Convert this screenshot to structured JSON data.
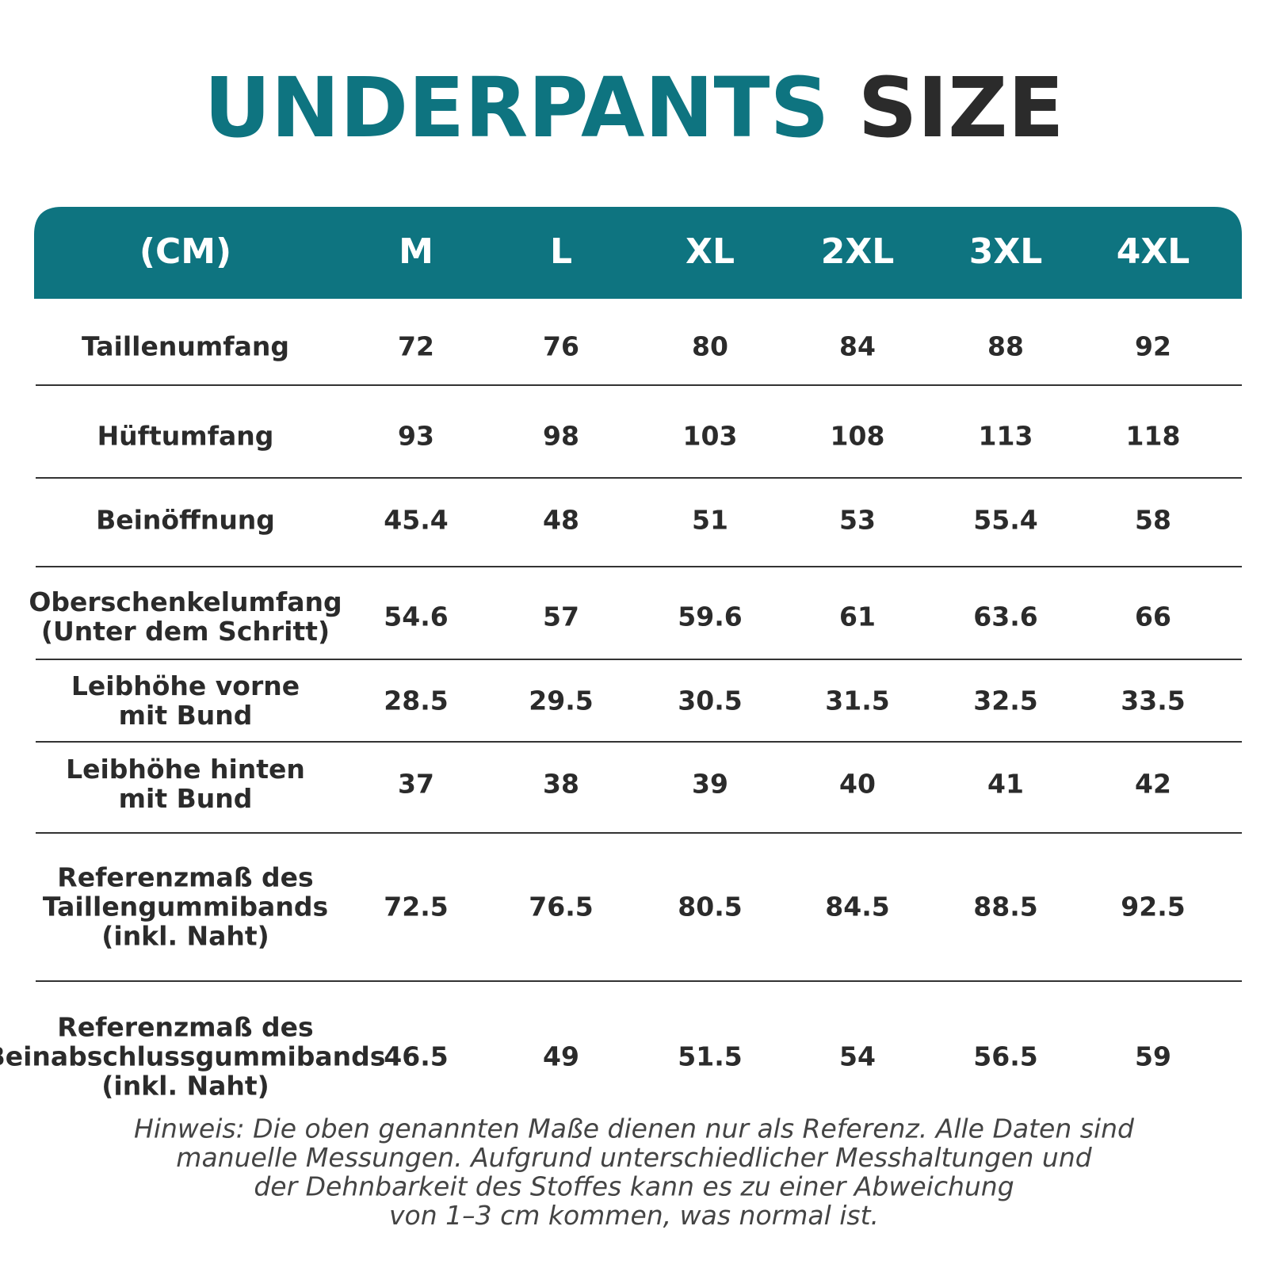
{
  "title": {
    "part1": "UNDERPANTS",
    "part2": "SIZE"
  },
  "table": {
    "header": [
      "(CM)",
      "M",
      "L",
      "XL",
      "2XL",
      "3XL",
      "4XL"
    ],
    "rows": [
      {
        "label": [
          "Taillenumfang"
        ],
        "values": [
          72,
          76,
          80,
          84,
          88,
          92
        ]
      },
      {
        "label": [
          "Hüftumfang"
        ],
        "values": [
          93,
          98,
          103,
          108,
          113,
          118
        ]
      },
      {
        "label": [
          "Beinöffnung"
        ],
        "values": [
          45.4,
          48,
          51,
          53,
          55.4,
          58
        ]
      },
      {
        "label": [
          "Oberschenkelumfang",
          "(Unter dem Schritt)"
        ],
        "values": [
          54.6,
          57,
          59.6,
          61,
          63.6,
          66
        ]
      },
      {
        "label": [
          "Leibhöhe vorne",
          "mit Bund"
        ],
        "values": [
          28.5,
          29.5,
          30.5,
          31.5,
          32.5,
          33.5
        ]
      },
      {
        "label": [
          "Leibhöhe hinten",
          "mit Bund"
        ],
        "values": [
          37,
          38,
          39,
          40,
          41,
          42
        ]
      },
      {
        "label": [
          "Referenzmaß des",
          "Taillengummibands",
          "(inkl. Naht)"
        ],
        "values": [
          72.5,
          76.5,
          80.5,
          84.5,
          88.5,
          92.5
        ]
      },
      {
        "label": [
          "Referenzmaß des",
          "Beinabschlussgummibands",
          "(inkl. Naht)"
        ],
        "values": [
          46.5,
          49,
          51.5,
          54,
          56.5,
          59
        ]
      }
    ]
  },
  "note": [
    "Hinweis: Die oben genannten Maße dienen nur als Referenz. Alle Daten sind",
    "manuelle Messungen. Aufgrund unterschiedlicher Messhaltungen und",
    "der Dehnbarkeit des Stoffes kann es zu einer Abweichung",
    "von 1–3 cm kommen, was normal ist."
  ]
}
